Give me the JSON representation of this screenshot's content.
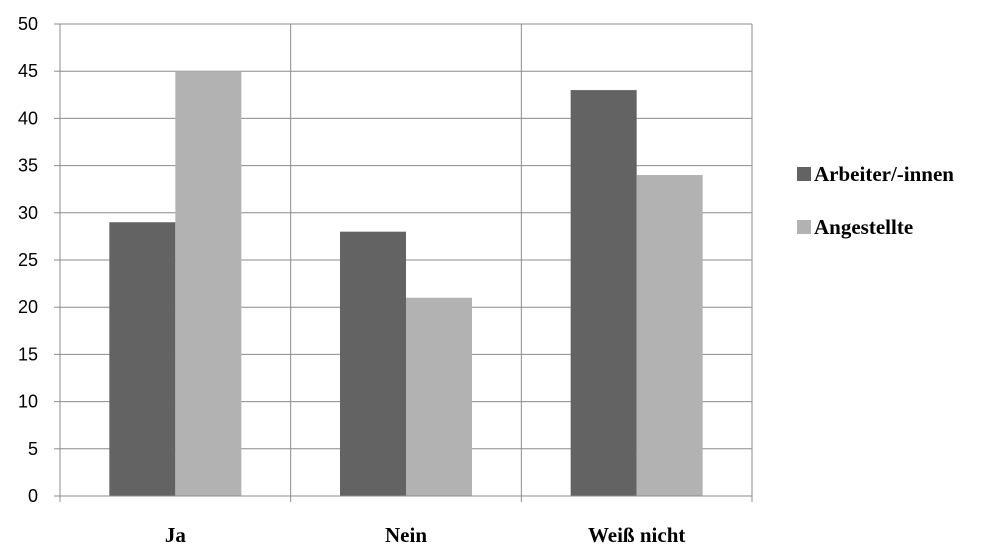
{
  "chart_data": {
    "type": "bar",
    "categories": [
      "Ja",
      "Nein",
      "Weiß nicht"
    ],
    "series": [
      {
        "name": "Arbeiter/-innen",
        "values": [
          29,
          28,
          43
        ],
        "color": "#636363"
      },
      {
        "name": "Angestellte",
        "values": [
          45,
          21,
          34
        ],
        "color": "#b2b2b2"
      }
    ],
    "ylim": [
      0,
      50
    ],
    "yticks": [
      0,
      5,
      10,
      15,
      20,
      25,
      30,
      35,
      40,
      45,
      50
    ],
    "grid": true,
    "legend": "right"
  }
}
